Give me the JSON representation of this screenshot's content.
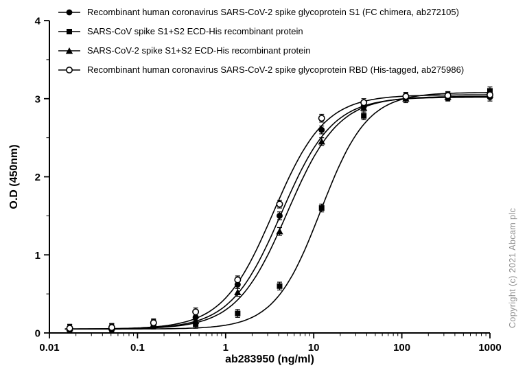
{
  "chart_data": {
    "type": "scatter",
    "title": "",
    "xlabel": "ab283950 (ng/ml)",
    "ylabel": "O.D (450nm)",
    "xscale": "log",
    "xlim": [
      0.01,
      1000
    ],
    "ylim": [
      0,
      4
    ],
    "xticks": [
      0.01,
      0.1,
      1,
      10,
      100,
      1000
    ],
    "yticks": [
      0,
      1,
      2,
      3,
      4
    ],
    "grid": false,
    "legend_position": "top-left",
    "error_bar": 0.05,
    "x": [
      0.017,
      0.051,
      0.152,
      0.457,
      1.37,
      4.1,
      12.3,
      37,
      111,
      333,
      1000
    ],
    "series": [
      {
        "name": "Recombinant human coronavirus SARS-CoV-2 spike glycoprotein S1 (FC chimera, ab272105)",
        "marker": "circle",
        "color": "#000000",
        "values": [
          0.06,
          0.07,
          0.12,
          0.2,
          0.62,
          1.5,
          2.6,
          2.9,
          3.02,
          3.03,
          3.02
        ],
        "fit": {
          "bottom": 0.05,
          "top": 3.02,
          "ec50": 4.3,
          "hill": 1.5
        }
      },
      {
        "name": "SARS-CoV spike S1+S2 ECD-His recombinant protein",
        "marker": "square",
        "color": "#000000",
        "values": [
          0.05,
          0.06,
          0.1,
          0.11,
          0.25,
          0.6,
          1.6,
          2.78,
          3.0,
          3.04,
          3.1
        ],
        "fit": {
          "bottom": 0.05,
          "top": 3.08,
          "ec50": 12.0,
          "hill": 1.65
        }
      },
      {
        "name": "SARS-CoV-2 spike S1+S2 ECD-His recombinant protein",
        "marker": "triangle",
        "color": "#000000",
        "values": [
          0.06,
          0.07,
          0.11,
          0.15,
          0.52,
          1.3,
          2.45,
          2.88,
          3.0,
          3.02,
          3.05
        ],
        "fit": {
          "bottom": 0.05,
          "top": 3.03,
          "ec50": 5.0,
          "hill": 1.5
        }
      },
      {
        "name": "Recombinant human coronavirus SARS-CoV-2 spike glycoprotein RBD (His-tagged, ab275986)",
        "marker": "circle-open",
        "color": "#000000",
        "values": [
          0.06,
          0.07,
          0.13,
          0.27,
          0.68,
          1.65,
          2.75,
          2.95,
          3.03,
          3.04,
          3.05
        ],
        "fit": {
          "bottom": 0.05,
          "top": 3.05,
          "ec50": 3.5,
          "hill": 1.5
        }
      }
    ],
    "watermark": "Copyright (c) 2021 Abcam plc"
  }
}
